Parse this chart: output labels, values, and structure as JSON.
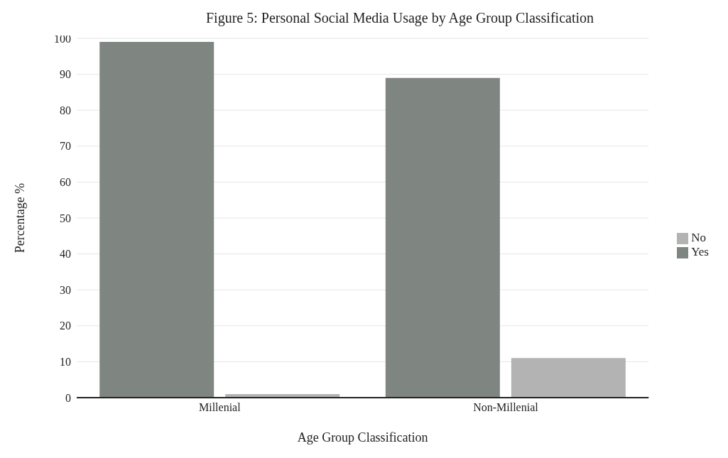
{
  "chart_data": {
    "type": "bar",
    "title": "Figure 5: Personal Social Media Usage by Age Group Classification",
    "xlabel": "Age Group Classification",
    "ylabel": "Percentage %",
    "categories": [
      "Millenial",
      "Non-Millenial"
    ],
    "series": [
      {
        "name": "Yes",
        "color": "#7f8581",
        "values": [
          99,
          89
        ]
      },
      {
        "name": "No",
        "color": "#b3b3b3",
        "values": [
          1,
          11
        ]
      }
    ],
    "ylim": [
      0,
      100
    ],
    "yticks": [
      0,
      10,
      20,
      30,
      40,
      50,
      60,
      70,
      80,
      90,
      100
    ],
    "grid": "y",
    "legend": "right"
  }
}
